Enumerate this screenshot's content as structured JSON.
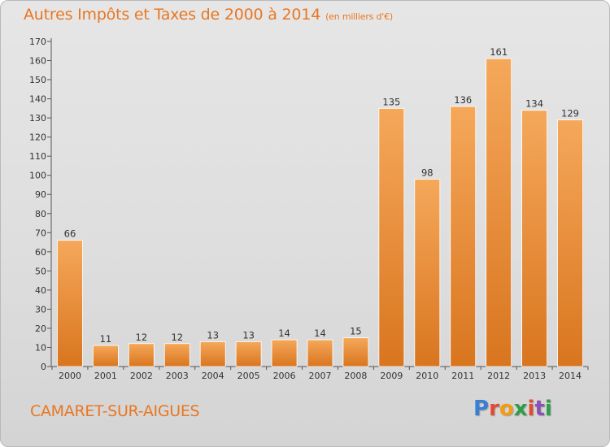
{
  "header": {
    "title": "Autres Impôts et Taxes de 2000 à 2014",
    "unit": "(en milliers d'€)"
  },
  "footer": {
    "commune": "CAMARET-SUR-AIGUES",
    "logo": [
      "P",
      "r",
      "o",
      "x",
      "i",
      "t",
      "i"
    ]
  },
  "colors": {
    "accent": "#e87722",
    "bar_light": "#f5a85a",
    "bar_dark": "#d9751f",
    "logo": [
      "#3b7fd1",
      "#e34a2f",
      "#f39c12",
      "#2e9e48",
      "#e34a2f",
      "#8c4fb3",
      "#2e9e48"
    ]
  },
  "chart_data": {
    "type": "bar",
    "title": "Autres Impôts et Taxes de 2000 à 2014",
    "subtitle": "(en milliers d'€)",
    "xlabel": "",
    "ylabel": "",
    "categories": [
      "2000",
      "2001",
      "2002",
      "2003",
      "2004",
      "2005",
      "2006",
      "2007",
      "2008",
      "2009",
      "2010",
      "2011",
      "2012",
      "2013",
      "2014"
    ],
    "values": [
      66,
      11,
      12,
      12,
      13,
      13,
      14,
      14,
      15,
      135,
      98,
      136,
      161,
      134,
      129
    ],
    "ylim": [
      0,
      170
    ],
    "yticks": [
      0,
      10,
      20,
      30,
      40,
      50,
      60,
      70,
      80,
      90,
      100,
      110,
      120,
      130,
      140,
      150,
      160,
      170
    ],
    "grid": false,
    "legend": "none"
  }
}
